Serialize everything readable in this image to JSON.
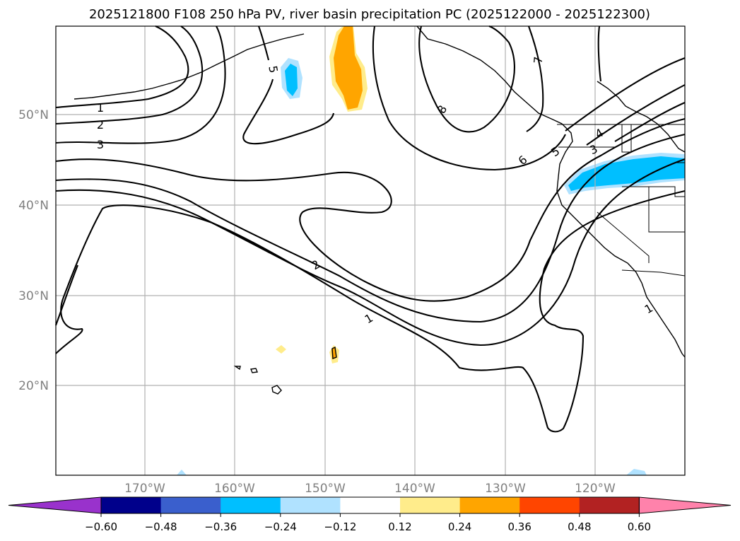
{
  "title": "2025121800 F108 250 hPa PV, river basin precipitation PC (2025122000 - 2025122300)",
  "map": {
    "lat_ticks": [
      "50°N",
      "40°N",
      "30°N",
      "20°N"
    ],
    "lon_ticks": [
      "170°W",
      "160°W",
      "150°W",
      "140°W",
      "130°W",
      "120°W"
    ],
    "contour_labels": [
      "1",
      "2",
      "3",
      "5",
      "8",
      "7",
      "6",
      "5",
      "4",
      "3",
      "2",
      "1",
      "1"
    ]
  },
  "colorbar": {
    "ticks": [
      "−0.60",
      "−0.48",
      "−0.36",
      "−0.24",
      "−0.12",
      "0.12",
      "0.24",
      "0.36",
      "0.48",
      "0.60"
    ],
    "colors": [
      "#9932cc",
      "#00008b",
      "#3a5fcd",
      "#00bfff",
      "#b0e2ff",
      "#ffffff",
      "#ffec8b",
      "#ffa500",
      "#ff4500",
      "#b22222",
      "#ff82ab"
    ]
  }
}
